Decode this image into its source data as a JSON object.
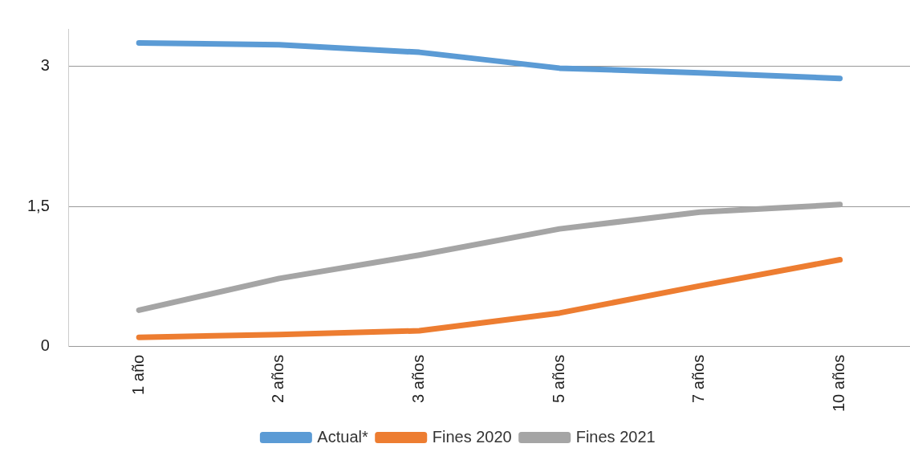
{
  "chart_data": {
    "type": "line",
    "categories": [
      "1 año",
      "2 años",
      "3 años",
      "5 años",
      "7 años",
      "10 años"
    ],
    "series": [
      {
        "name": "Actual*",
        "color": "#5b9bd5",
        "values": [
          3.25,
          3.23,
          3.15,
          2.98,
          2.93,
          2.87
        ]
      },
      {
        "name": "Fines 2020",
        "color": "#ed7d31",
        "values": [
          0.1,
          0.13,
          0.17,
          0.36,
          0.65,
          0.93
        ]
      },
      {
        "name": "Fines 2021",
        "color": "#a5a5a5",
        "values": [
          0.39,
          0.73,
          0.98,
          1.26,
          1.44,
          1.52
        ]
      }
    ],
    "ylim": [
      0,
      3.4
    ],
    "yticks": [
      0,
      {
        "value": 1.5,
        "label": "1,5"
      },
      3
    ],
    "grid": "y",
    "legend": "bottom",
    "marker": "none",
    "line_style": "solid"
  }
}
